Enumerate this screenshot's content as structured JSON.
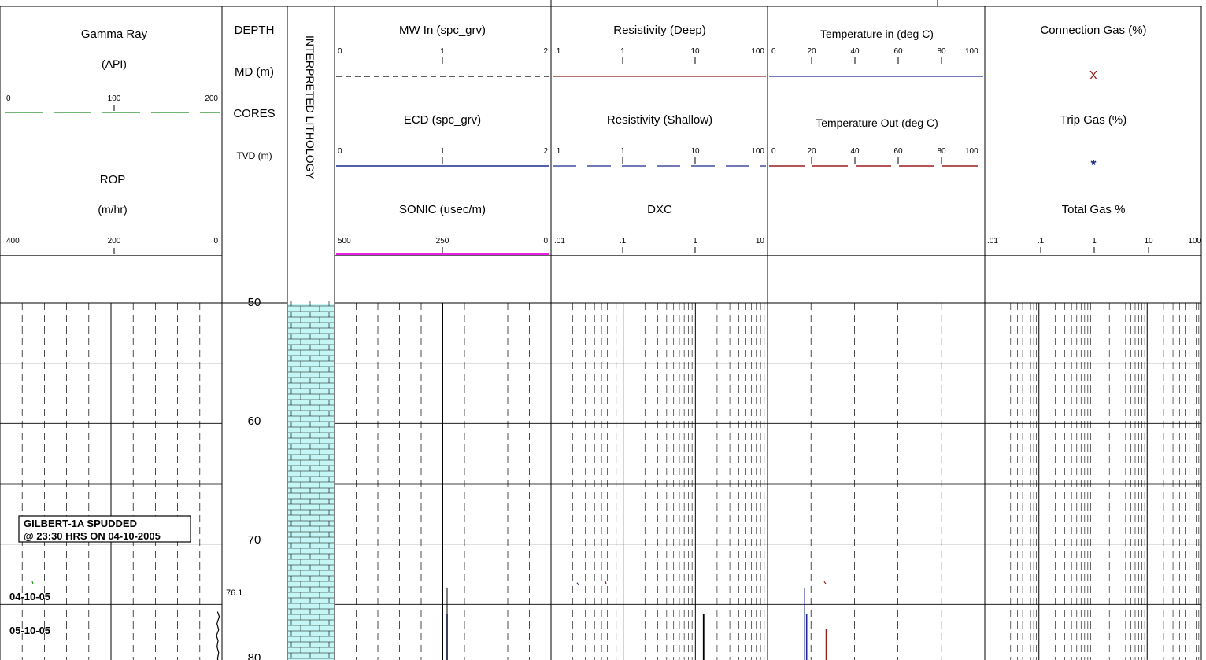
{
  "chart_data": {
    "type": "mud-log",
    "depth_range": [
      50,
      80
    ],
    "depth_labels": [
      "50",
      "60",
      "70",
      "80"
    ],
    "td_marker": "76.1",
    "tracks": {
      "gamma_rop": {
        "curve_1": {
          "name": "Gamma Ray",
          "unit": "(API)",
          "scale": [
            "0",
            "100",
            "200"
          ],
          "color": "#1f8a1f"
        },
        "curve_2": {
          "name": "ROP",
          "unit": "(m/hr)",
          "scale": [
            "400",
            "200",
            "0"
          ],
          "color": "#000000"
        }
      },
      "depth": {
        "labels": [
          "DEPTH",
          "MD (m)",
          "CORES",
          "TVD (m)"
        ]
      },
      "lithology": {
        "label": "INTERPRETED LITHOLOGY",
        "fill": "#c4f6f6"
      },
      "mw_ecd_sonic": {
        "curve_1": {
          "name": "MW In (spc_grv)",
          "scale": [
            "0",
            "1",
            "2"
          ],
          "color": "#000000"
        },
        "curve_2": {
          "name": "ECD (spc_grv)",
          "scale": [
            "0",
            "1",
            "2"
          ],
          "color": "#1c2a8c"
        },
        "curve_3": {
          "name": "SONIC (usec/m)",
          "scale": [
            "500",
            "250",
            "0"
          ],
          "color": "#e61ee6"
        }
      },
      "resistivity": {
        "curve_1": {
          "name": "Resistivity (Deep)",
          "scale": [
            ".1",
            "1",
            "10",
            "100"
          ],
          "color": "#8b1a1a"
        },
        "curve_2": {
          "name": "Resistivity (Shallow)",
          "scale": [
            ".1",
            "1",
            "10",
            "100"
          ],
          "color": "#1c2a8c"
        },
        "curve_3": {
          "name": "DXC",
          "scale": [
            ".01",
            ".1",
            "1",
            "10"
          ],
          "color": "#000000"
        }
      },
      "temperature": {
        "curve_1": {
          "name": "Temperature in (deg C)",
          "scale": [
            "0",
            "20",
            "40",
            "60",
            "80",
            "100"
          ],
          "color": "#1c2a8c"
        },
        "curve_2": {
          "name": "Temperature Out (deg C)",
          "scale": [
            "0",
            "20",
            "40",
            "60",
            "80",
            "100"
          ],
          "color": "#9b1b1b"
        }
      },
      "gas": {
        "curve_1": {
          "name": "Connection Gas (%)",
          "symbol": "X",
          "color": "#9b1b1b"
        },
        "curve_2": {
          "name": "Trip Gas (%)",
          "symbol": "*",
          "color": "#1c2a8c"
        },
        "curve_3": {
          "name": "Total Gas %",
          "scale": [
            ".01",
            ".1",
            "1",
            "10",
            "100"
          ]
        }
      }
    },
    "annotations": [
      {
        "line1": "GILBERT-1A SPUDDED",
        "line2": "@ 23:30 HRS ON 04-10-2005",
        "depth": 70
      }
    ],
    "dates": [
      {
        "label": "04-10-05",
        "depth": 76.5
      },
      {
        "label": "05-10-05",
        "depth": 78.3
      }
    ],
    "curve_data": {
      "rop": {
        "depth": [
          75.6,
          76.0,
          76.6,
          77.1,
          77.6,
          78.0,
          78.5,
          79.0,
          79.5,
          80.0
        ],
        "value": [
          8,
          5,
          9,
          6,
          10,
          7,
          9,
          6,
          8,
          5
        ]
      },
      "sonic": {
        "depth": [
          75.8,
          80.0
        ],
        "value": [
          12,
          12
        ]
      },
      "dxc": {
        "depth": [
          75.8,
          80.0
        ],
        "value": [
          1.3,
          1.3
        ]
      },
      "temp_in": {
        "depth": [
          75.8,
          80.0
        ],
        "value": [
          18,
          18
        ]
      },
      "temp_out": {
        "depth": [
          77.0,
          80.0
        ],
        "value": [
          27,
          27
        ]
      }
    }
  }
}
